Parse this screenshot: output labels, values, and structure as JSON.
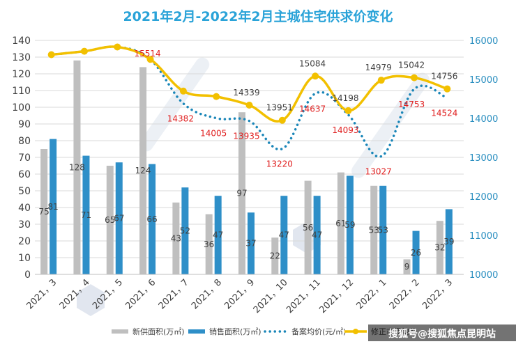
{
  "chart_data": {
    "type": "bar+line",
    "title": "2021年2月-2022年2月主城住宅供求价变化",
    "categories": [
      "2021，3",
      "2021，4",
      "2021，5",
      "2021，6",
      "2021，7",
      "2021，8",
      "2021，9",
      "2021，10",
      "2021，11",
      "2021，12",
      "2022，1",
      "2022，2",
      "2022，3"
    ],
    "y_left": {
      "min": 0,
      "max": 140,
      "step": 10
    },
    "y_right": {
      "min": 10000,
      "max": 16000,
      "step": 1000
    },
    "series": [
      {
        "name": "新供面积(万㎡)",
        "type": "bar",
        "axis": "left",
        "color": "#bfbfbf",
        "values": [
          75,
          128,
          65,
          124,
          43,
          36,
          97,
          22,
          56,
          61,
          53,
          9,
          32
        ]
      },
      {
        "name": "销售面积(万㎡)",
        "type": "bar",
        "axis": "left",
        "color": "#2e8fc8",
        "values": [
          81,
          71,
          67,
          66,
          52,
          47,
          37,
          47,
          47,
          59,
          53,
          26,
          39
        ]
      },
      {
        "name": "备案均价(元/㎡)",
        "type": "line",
        "style": "dotted",
        "axis": "right",
        "color": "#1a86b8",
        "values": [
          15634,
          15721,
          15831,
          15514,
          14382,
          14005,
          13935,
          13220,
          14637,
          14093,
          13027,
          14753,
          14524
        ],
        "labels": [
          null,
          null,
          null,
          "15514",
          "14382",
          "14005",
          "13935",
          "13220",
          "14637",
          "14093",
          "13027",
          "14753",
          "14524"
        ]
      },
      {
        "name": "修正市场均价",
        "type": "line",
        "axis": "right",
        "color": "#f2c000",
        "values": [
          15634,
          15721,
          15831,
          15514,
          14700,
          14560,
          14339,
          13951,
          15084,
          14198,
          14979,
          15042,
          14756
        ],
        "labels": [
          null,
          null,
          null,
          null,
          null,
          null,
          "14339",
          "13951",
          "15084",
          "14198",
          "14979",
          "15042",
          "14756"
        ]
      }
    ]
  },
  "footer": {
    "source": "搜狐号@搜狐焦点昆明站"
  }
}
